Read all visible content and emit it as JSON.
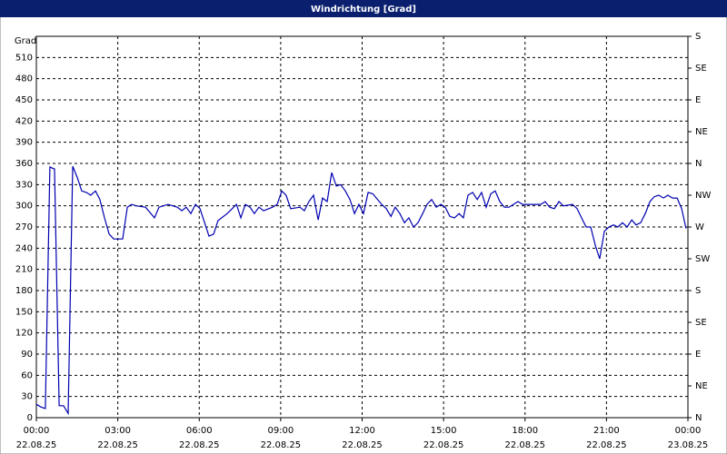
{
  "chart_data": {
    "type": "line",
    "title": "Windrichtung [Grad]",
    "y_label": "Grad",
    "xlim": [
      0,
      24
    ],
    "xticks": [
      {
        "value": 0,
        "label": "00:00",
        "date": "22.08.25"
      },
      {
        "value": 3,
        "label": "03:00",
        "date": "22.08.25"
      },
      {
        "value": 6,
        "label": "06:00",
        "date": "22.08.25"
      },
      {
        "value": 9,
        "label": "09:00",
        "date": "22.08.25"
      },
      {
        "value": 12,
        "label": "12:00",
        "date": "22.08.25"
      },
      {
        "value": 15,
        "label": "15:00",
        "date": "22.08.25"
      },
      {
        "value": 18,
        "label": "18:00",
        "date": "22.08.25"
      },
      {
        "value": 21,
        "label": "21:00",
        "date": "22.08.25"
      },
      {
        "value": 24,
        "label": "00:00",
        "date": "23.08.25"
      }
    ],
    "ylim": [
      0,
      540
    ],
    "yticks": [
      0,
      30,
      60,
      90,
      120,
      150,
      180,
      210,
      240,
      270,
      300,
      330,
      360,
      390,
      420,
      450,
      480,
      510
    ],
    "y2lim": [
      0,
      540
    ],
    "y2ticks": [
      {
        "value": 0,
        "label": "N"
      },
      {
        "value": 45,
        "label": "NE"
      },
      {
        "value": 90,
        "label": "E"
      },
      {
        "value": 135,
        "label": "SE"
      },
      {
        "value": 180,
        "label": "S"
      },
      {
        "value": 225,
        "label": "SW"
      },
      {
        "value": 270,
        "label": "W"
      },
      {
        "value": 315,
        "label": "NW"
      },
      {
        "value": 360,
        "label": "N"
      },
      {
        "value": 405,
        "label": "NE"
      },
      {
        "value": 450,
        "label": "E"
      },
      {
        "value": 495,
        "label": "SE"
      },
      {
        "value": 540,
        "label": "S"
      }
    ],
    "grid": true,
    "series": [
      {
        "color": "#0000b0",
        "x": [
          0,
          0.17,
          0.33,
          0.5,
          0.67,
          0.84,
          1.0,
          1.17,
          1.34,
          1.51,
          1.67,
          1.84,
          2.0,
          2.18,
          2.34,
          2.51,
          2.68,
          2.85,
          3.01,
          3.18,
          3.35,
          3.51,
          3.68,
          4.02,
          4.35,
          4.52,
          4.85,
          5.19,
          5.36,
          5.52,
          5.69,
          5.86,
          6.03,
          6.36,
          6.53,
          6.69,
          7.03,
          7.37,
          7.53,
          7.7,
          7.87,
          8.03,
          8.2,
          8.37,
          8.7,
          8.87,
          9.04,
          9.2,
          9.37,
          9.71,
          9.87,
          10.04,
          10.21,
          10.38,
          10.54,
          10.71,
          10.88,
          11.05,
          11.21,
          11.38,
          11.55,
          11.72,
          11.88,
          12.05,
          12.22,
          12.39,
          12.72,
          12.89,
          13.06,
          13.22,
          13.39,
          13.56,
          13.72,
          13.89,
          14.06,
          14.23,
          14.39,
          14.56,
          14.73,
          14.9,
          15.06,
          15.23,
          15.4,
          15.57,
          15.73,
          15.9,
          16.07,
          16.24,
          16.4,
          16.57,
          16.74,
          16.9,
          17.07,
          17.24,
          17.41,
          17.74,
          17.91,
          18.41,
          18.58,
          18.74,
          18.91,
          19.08,
          19.25,
          19.41,
          19.75,
          19.92,
          20.08,
          20.25,
          20.42,
          20.59,
          20.75,
          20.92,
          21.09,
          21.26,
          21.42,
          21.59,
          21.76,
          21.93,
          22.09,
          22.26,
          22.43,
          22.6,
          22.76,
          22.93,
          23.1,
          23.26,
          23.43,
          23.6,
          23.77,
          23.93
        ],
        "values": [
          19,
          15,
          13,
          355,
          352,
          17,
          17,
          6,
          356,
          340,
          321,
          319,
          315,
          321,
          309,
          283,
          260,
          253,
          253,
          253,
          298,
          302,
          300,
          298,
          283,
          298,
          302,
          298,
          293,
          298,
          289,
          302,
          296,
          257,
          260,
          279,
          289,
          302,
          283,
          302,
          298,
          289,
          298,
          293,
          298,
          302,
          321,
          315,
          296,
          298,
          293,
          306,
          315,
          280,
          311,
          306,
          347,
          328,
          330,
          321,
          309,
          289,
          302,
          289,
          319,
          317,
          302,
          296,
          285,
          298,
          289,
          276,
          283,
          270,
          276,
          289,
          302,
          309,
          298,
          302,
          298,
          285,
          283,
          289,
          283,
          315,
          319,
          309,
          319,
          298,
          317,
          321,
          306,
          298,
          298,
          306,
          302,
          302,
          302,
          306,
          298,
          296,
          306,
          300,
          302,
          296,
          283,
          270,
          270,
          244,
          225,
          264,
          270,
          273,
          270,
          276,
          270,
          280,
          273,
          276,
          289,
          306,
          313,
          315,
          311,
          315,
          311,
          311,
          296,
          268
        ]
      }
    ]
  }
}
